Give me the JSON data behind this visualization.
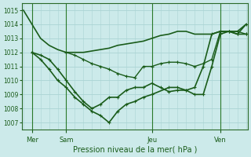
{
  "xlabel": "Pression niveau de la mer( hPa )",
  "background_color": "#cceaea",
  "line_color": "#1a5c1a",
  "grid_color": "#aad4d4",
  "vline_color": "#2a7a2a",
  "ylim": [
    1006.5,
    1015.5
  ],
  "yticks": [
    1007,
    1008,
    1009,
    1010,
    1011,
    1012,
    1013,
    1014,
    1015
  ],
  "xlim": [
    -0.1,
    13.1
  ],
  "day_labels": [
    "Mer",
    "Sam",
    "Jeu",
    "Ven"
  ],
  "day_positions": [
    0.5,
    2.5,
    7.5,
    11.5
  ],
  "vline_positions": [
    0.5,
    2.5,
    7.5,
    11.5
  ],
  "lines": [
    {
      "x": [
        0.0,
        0.5,
        1.0,
        1.5,
        2.0,
        2.5,
        3.0,
        3.5,
        4.0,
        4.5,
        5.0,
        5.5,
        6.0,
        6.5,
        7.0,
        7.5,
        8.0,
        8.5,
        9.0,
        9.5,
        10.0,
        10.5,
        11.0,
        11.5,
        12.0,
        12.5,
        13.0
      ],
      "y": [
        1015.0,
        1014.0,
        1013.0,
        1012.5,
        1012.2,
        1012.0,
        1012.0,
        1012.0,
        1012.1,
        1012.2,
        1012.3,
        1012.5,
        1012.6,
        1012.7,
        1012.8,
        1013.0,
        1013.2,
        1013.3,
        1013.5,
        1013.5,
        1013.3,
        1013.3,
        1013.3,
        1013.5,
        1013.5,
        1013.5,
        1014.0
      ],
      "marker": false,
      "lw": 1.2
    },
    {
      "x": [
        2.5,
        3.0,
        3.5,
        4.0,
        4.5,
        5.0,
        5.5,
        6.0,
        6.5,
        7.0,
        7.5,
        8.0,
        8.5,
        9.0,
        9.5,
        10.0,
        10.5,
        11.0,
        11.5,
        12.0,
        12.5,
        13.0
      ],
      "y": [
        1012.0,
        1011.8,
        1011.5,
        1011.2,
        1011.0,
        1010.8,
        1010.5,
        1010.3,
        1010.2,
        1011.0,
        1011.0,
        1011.2,
        1011.3,
        1011.3,
        1011.2,
        1011.0,
        1011.2,
        1011.5,
        1013.5,
        1013.5,
        1013.5,
        1013.3
      ],
      "marker": true,
      "lw": 1.0
    },
    {
      "x": [
        0.5,
        1.0,
        1.5,
        2.0,
        2.5,
        3.0,
        3.5,
        4.0,
        4.5,
        5.0,
        5.5,
        6.0,
        6.5,
        7.0,
        7.5,
        8.0,
        8.5,
        9.0,
        9.5,
        10.0,
        10.5,
        11.0,
        11.5,
        12.0,
        12.5,
        13.0
      ],
      "y": [
        1012.0,
        1011.8,
        1011.5,
        1010.8,
        1010.0,
        1009.2,
        1008.5,
        1008.0,
        1008.3,
        1008.8,
        1008.8,
        1009.3,
        1009.5,
        1009.5,
        1009.8,
        1009.5,
        1009.2,
        1009.3,
        1009.3,
        1009.5,
        1011.0,
        1013.3,
        1013.5,
        1013.5,
        1013.3,
        1013.3
      ],
      "marker": true,
      "lw": 1.2
    },
    {
      "x": [
        0.5,
        1.0,
        1.5,
        2.0,
        2.5,
        3.0,
        3.5,
        4.0,
        4.5,
        5.0,
        5.5,
        6.0,
        6.5,
        7.0,
        7.5,
        8.5,
        9.0,
        9.5,
        10.0,
        10.5,
        11.0,
        11.5,
        12.0,
        12.5,
        13.0
      ],
      "y": [
        1012.0,
        1011.5,
        1010.8,
        1010.0,
        1009.5,
        1008.8,
        1008.3,
        1007.8,
        1007.5,
        1007.0,
        1007.8,
        1008.3,
        1008.5,
        1008.8,
        1009.0,
        1009.5,
        1009.5,
        1009.3,
        1009.0,
        1009.0,
        1011.0,
        1013.3,
        1013.5,
        1013.3,
        1014.0
      ],
      "marker": true,
      "lw": 1.2
    }
  ]
}
